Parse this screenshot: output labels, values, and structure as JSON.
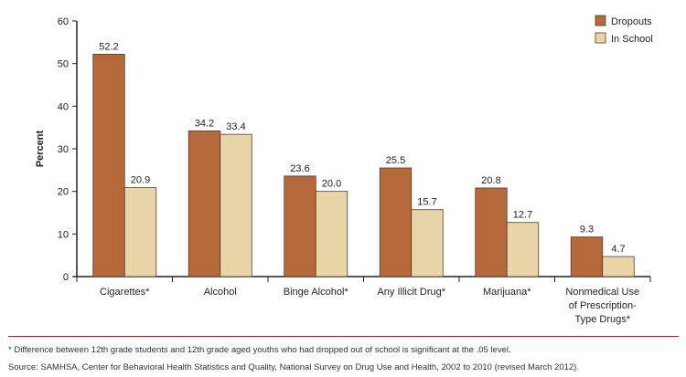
{
  "chart_data": {
    "type": "bar",
    "title": "",
    "xlabel": "",
    "ylabel": "Percent",
    "ylim": [
      0,
      60
    ],
    "yticks": [
      0,
      10,
      20,
      30,
      40,
      50,
      60
    ],
    "categories": [
      [
        "Cigarettes*"
      ],
      [
        "Alcohol"
      ],
      [
        "Binge Alcohol*"
      ],
      [
        "Any Illicit Drug*"
      ],
      [
        "Marijuana*"
      ],
      [
        "Nonmedical Use",
        "of Prescription-",
        "Type Drugs*"
      ]
    ],
    "series": [
      {
        "name": "Dropouts",
        "color": "#b5693a",
        "values": [
          52.2,
          34.2,
          23.6,
          25.5,
          20.8,
          9.3
        ]
      },
      {
        "name": "In School",
        "color": "#e8d6a9",
        "values": [
          20.9,
          33.4,
          20.0,
          15.7,
          12.7,
          4.7
        ]
      }
    ],
    "legend_position": "top-right",
    "grid": false
  },
  "footnote": "* Difference between 12th grade students and 12th grade aged youths who had dropped out of school is significant at the .05 level.",
  "source": "Source: SAMHSA, Center for Behavioral Health Statistics and Quality, National Survey on Drug Use and Health, 2002 to 2010 (revised March 2012).",
  "divider_color": "#a3202a"
}
